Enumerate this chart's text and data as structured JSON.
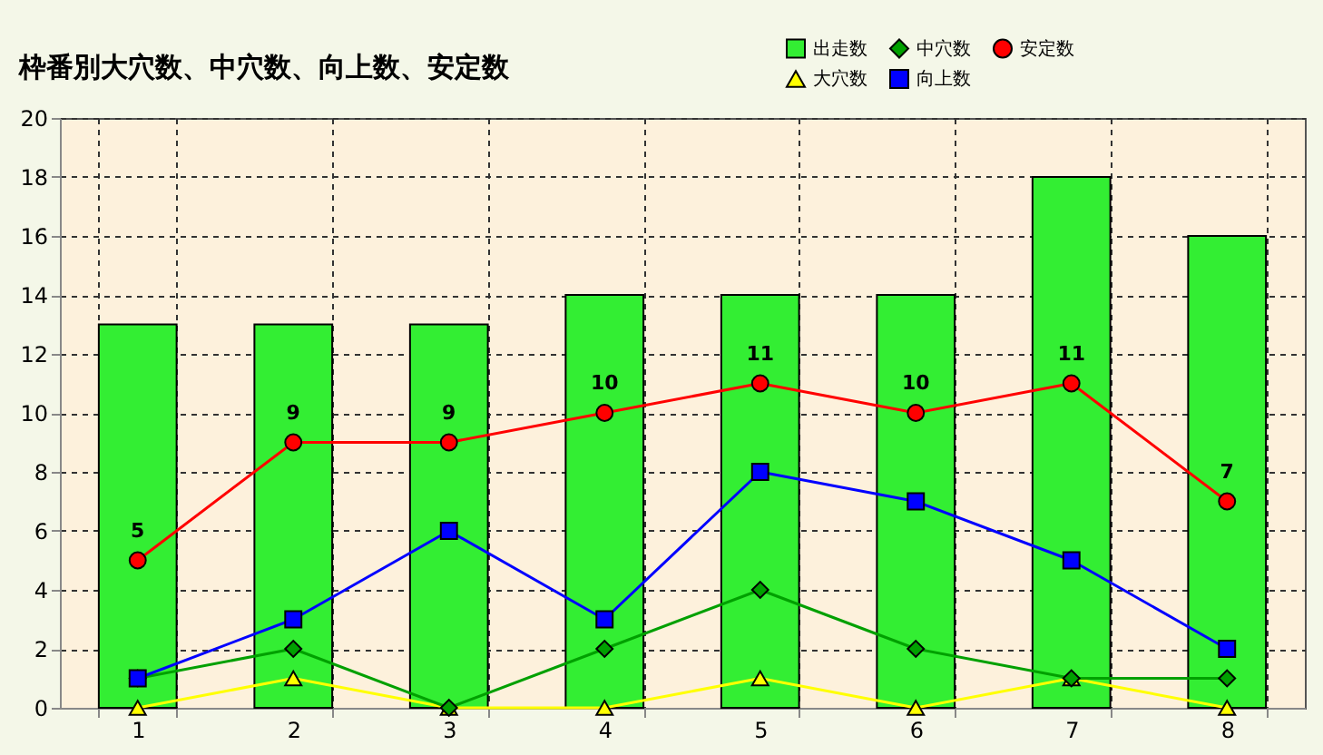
{
  "chart_data": {
    "type": "bar",
    "title": "枠番別大穴数、中穴数、向上数、安定数",
    "categories": [
      "1",
      "2",
      "3",
      "4",
      "5",
      "6",
      "7",
      "8"
    ],
    "ylim": [
      0,
      20
    ],
    "yticks": [
      0,
      2,
      4,
      6,
      8,
      10,
      12,
      14,
      16,
      18,
      20
    ],
    "grid": true,
    "legend": "top right",
    "series": [
      {
        "name": "出走数",
        "color": "#33ee33",
        "values": [
          13,
          13,
          13,
          14,
          14,
          14,
          18,
          16
        ]
      },
      {
        "name": "大穴数",
        "type": "line",
        "marker": "triangle",
        "color": "#ffff00",
        "values": [
          0,
          1,
          0,
          0,
          1,
          0,
          1,
          0
        ]
      },
      {
        "name": "中穴数",
        "type": "line",
        "marker": "diamond",
        "color": "#00a000",
        "values": [
          1,
          2,
          0,
          2,
          4,
          2,
          1,
          1
        ]
      },
      {
        "name": "向上数",
        "type": "line",
        "marker": "square",
        "color": "#0000ff",
        "values": [
          1,
          3,
          6,
          3,
          8,
          7,
          5,
          2
        ]
      },
      {
        "name": "安定数",
        "type": "line",
        "marker": "circle",
        "color": "#ff0000",
        "values": [
          5,
          9,
          9,
          10,
          11,
          10,
          11,
          7
        ],
        "value_labels": [
          "5",
          "9",
          "9",
          "10",
          "11",
          "10",
          "11",
          "7"
        ]
      }
    ]
  }
}
